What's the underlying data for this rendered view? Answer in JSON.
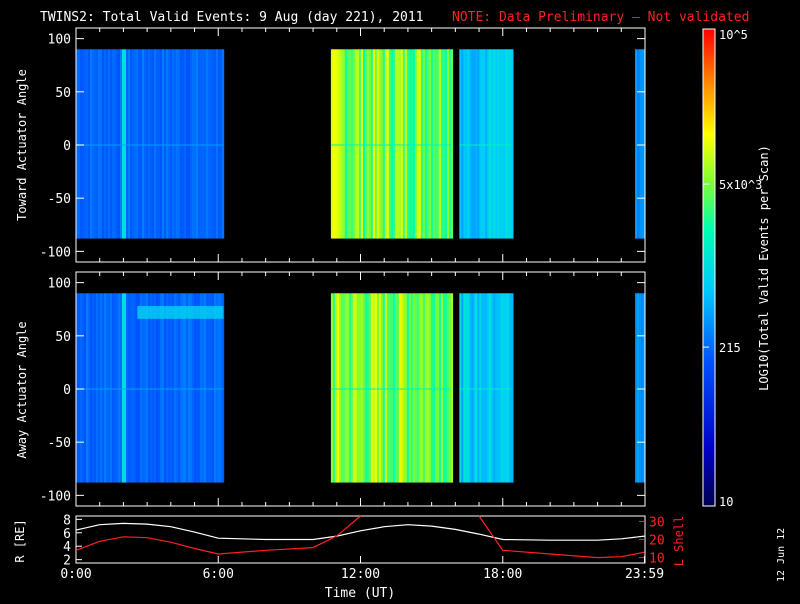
{
  "header": {
    "title": "TWINS2: Total Valid Events:  9 Aug (day 221), 2011",
    "note": "NOTE: Data Preliminary — Not validated",
    "note_color": "#ff2020",
    "text_color": "#ffffff"
  },
  "stamp": "12 Jun 12",
  "chart_data": [
    {
      "type": "heatmap",
      "panel": "toward",
      "ylabel": "Toward Actuator Angle",
      "xlim": [
        0,
        24
      ],
      "ylim": [
        -110,
        110
      ],
      "y_ticks": [
        100,
        50,
        0,
        -50,
        -100
      ],
      "data_y_range": [
        -88,
        90
      ],
      "time_blocks": [
        {
          "start": "0:00",
          "end": "6:13"
        },
        {
          "start": "10:45",
          "end": "15:50"
        },
        {
          "start": "16:10",
          "end": "18:22"
        },
        {
          "start": "23:35",
          "end": "23:59"
        }
      ],
      "bright_stripes_at": [
        "2:00"
      ],
      "grid": false
    },
    {
      "type": "heatmap",
      "panel": "away",
      "ylabel": "Away Actuator Angle",
      "xlim": [
        0,
        24
      ],
      "ylim": [
        -110,
        110
      ],
      "y_ticks": [
        100,
        50,
        0,
        -50,
        -100
      ],
      "data_y_range": [
        -88,
        90
      ],
      "time_blocks": [
        {
          "start": "0:00",
          "end": "6:13"
        },
        {
          "start": "10:45",
          "end": "15:50"
        },
        {
          "start": "16:10",
          "end": "18:22"
        },
        {
          "start": "23:35",
          "end": "23:59"
        }
      ],
      "bright_stripes_at": [
        "2:00"
      ],
      "grid": false
    },
    {
      "type": "line",
      "panel": "orbit",
      "ylabel_left": "R [RE]",
      "ylabel_right": "L Shell",
      "xlabel": "Time (UT)",
      "x_tick_labels": [
        "0:00",
        "6:00",
        "12:00",
        "18:00",
        "23:59"
      ],
      "x_tick_hours": [
        0,
        6,
        12,
        18,
        23.98
      ],
      "left_ticks": [
        8,
        6,
        4,
        2
      ],
      "left_ylim": [
        1.5,
        8.5
      ],
      "right_ticks": [
        30,
        20,
        10
      ],
      "right_ylim": [
        7,
        33
      ],
      "series": [
        {
          "name": "R [RE]",
          "axis": "left",
          "color": "#ffffff",
          "x": [
            0,
            1,
            2,
            3,
            4,
            5,
            6,
            8,
            10,
            11,
            12,
            13,
            14,
            15,
            16,
            17,
            18,
            20,
            22,
            23,
            23.98
          ],
          "y": [
            6.4,
            7.2,
            7.4,
            7.3,
            6.9,
            6.1,
            5.2,
            5.0,
            5.0,
            5.5,
            6.3,
            6.9,
            7.2,
            7.0,
            6.5,
            5.8,
            5.0,
            4.9,
            4.9,
            5.1,
            5.5
          ]
        },
        {
          "name": "L Shell",
          "axis": "right",
          "color": "#ff2020",
          "x": [
            0,
            1,
            2,
            3,
            4,
            5,
            6,
            8,
            10,
            11,
            12,
            13,
            14,
            15,
            16,
            17,
            18,
            20,
            22,
            23,
            23.98
          ],
          "y": [
            14,
            19,
            21.5,
            21,
            18.5,
            15,
            12,
            14,
            15.5,
            22,
            33,
            null,
            null,
            null,
            null,
            33,
            14,
            12,
            10,
            10.5,
            13
          ]
        }
      ]
    }
  ],
  "colorbar": {
    "label": "LOG10(Total Valid Events per Scan)",
    "tick_labels": [
      "10",
      "215",
      "5x10^3",
      "10^5"
    ],
    "tick_values": [
      10,
      215,
      5000,
      100000
    ],
    "range": [
      10,
      100000
    ],
    "scale": "log"
  }
}
